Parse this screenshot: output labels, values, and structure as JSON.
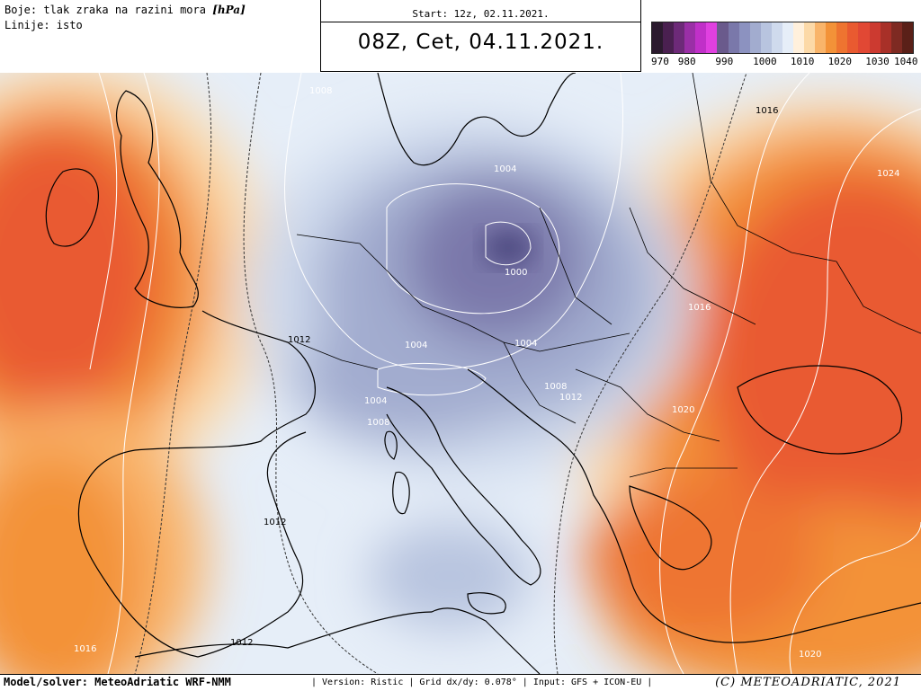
{
  "header": {
    "legend_colors": "Boje: tlak zraka na razini mora",
    "legend_unit": "[hPa]",
    "legend_lines": "Linije: isto",
    "start": "Start: 12z, 02.11.2021.",
    "valid": "08Z, Cet, 04.11.2021."
  },
  "scale": {
    "colors": [
      "#2b1a2e",
      "#4a2050",
      "#6d2a78",
      "#9a2fa6",
      "#c030c8",
      "#e040e0",
      "#6a5a8c",
      "#7a78aa",
      "#8c92c0",
      "#a2accf",
      "#b8c4df",
      "#cfdaed",
      "#e6eef8",
      "#fff0dc",
      "#fcd9a8",
      "#f9b46a",
      "#f39238",
      "#ee7430",
      "#e95a30",
      "#e14834",
      "#cc3a30",
      "#a83028",
      "#7e2a22",
      "#5a2018"
    ],
    "labels": [
      "970",
      "980",
      "990",
      "1000",
      "1010",
      "1020",
      "1030",
      "1040"
    ]
  },
  "map": {
    "isobar_labels": [
      "1008",
      "1004",
      "1000",
      "1004",
      "1004",
      "1004",
      "1008",
      "1008",
      "1012",
      "1012",
      "1012",
      "1012",
      "1016",
      "1016",
      "1016",
      "1020",
      "1020",
      "1024"
    ]
  },
  "footer": {
    "model": "Model/solver: MeteoAdriatic WRF-NMM",
    "meta": "| Version: Ristic | Grid dx/dy: 0.078° | Input: GFS + ICON-EU |",
    "copyright": "(C) METEOADRIATIC, 2021"
  }
}
